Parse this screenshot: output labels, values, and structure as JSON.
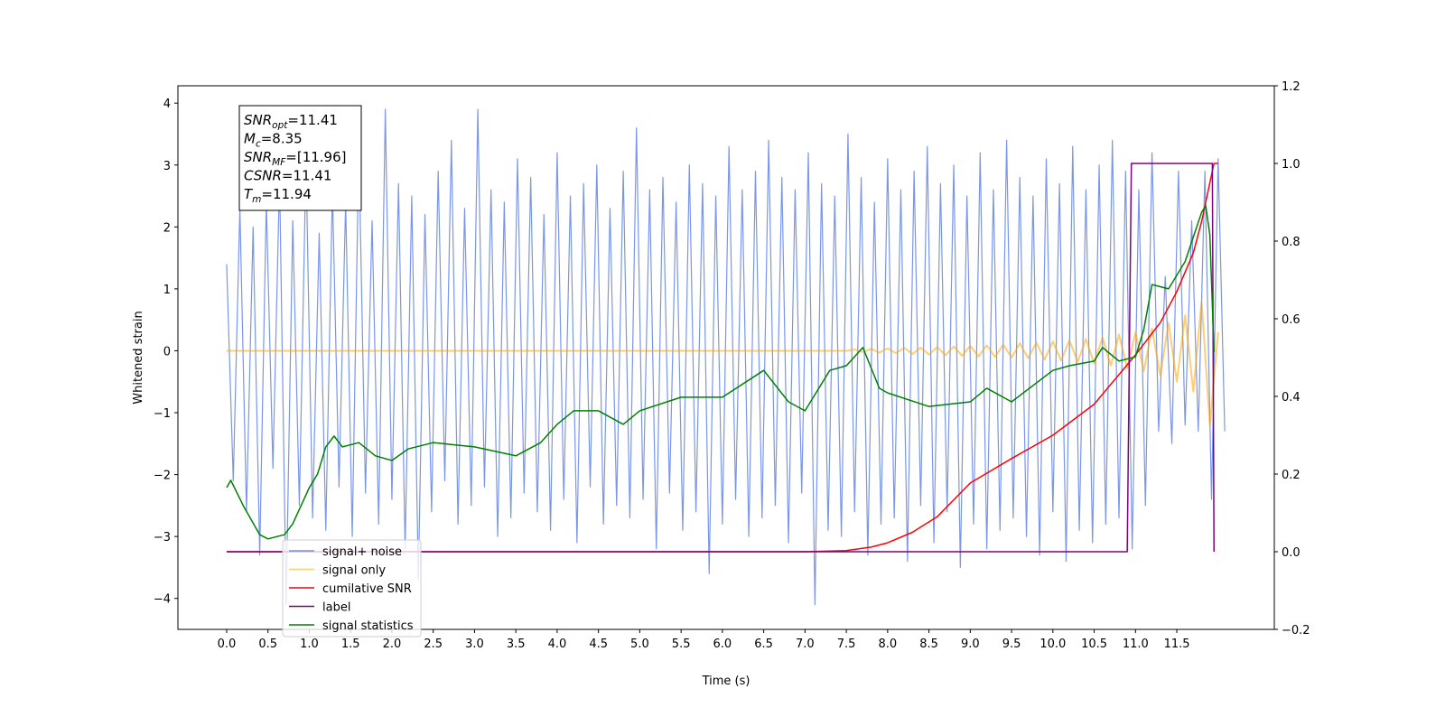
{
  "chart_data": {
    "type": "line",
    "xlabel": "Time (s)",
    "ylabel": "Whitened strain",
    "xlim": [
      -0.59,
      12.68
    ],
    "ylim": [
      -4.5,
      4.28
    ],
    "y2lim": [
      -0.2,
      1.2
    ],
    "xticks": [
      {
        "value": 0,
        "label": "0.0"
      },
      0.5,
      {
        "value": 1,
        "label": "1.0"
      },
      1.5,
      {
        "value": 2,
        "label": "2.0"
      },
      2.5,
      {
        "value": 3,
        "label": "3.0"
      },
      3.5,
      {
        "value": 4,
        "label": "4.0"
      },
      4.5,
      {
        "value": 5,
        "label": "5.0"
      },
      5.5,
      {
        "value": 6,
        "label": "6.0"
      },
      6.5,
      {
        "value": 7,
        "label": "7.0"
      },
      7.5,
      {
        "value": 8,
        "label": "8.0"
      },
      8.5,
      {
        "value": 9,
        "label": "9.0"
      },
      9.5,
      {
        "value": 10,
        "label": "10.0"
      },
      10.5,
      {
        "value": 11,
        "label": "11.0"
      },
      11.5
    ],
    "yticks": [
      {
        "value": -4,
        "label": "−4"
      },
      {
        "value": -3,
        "label": "−3"
      },
      {
        "value": -2,
        "label": "−2"
      },
      {
        "value": -1,
        "label": "−1"
      },
      0,
      1,
      2,
      3,
      4
    ],
    "y2ticks": [
      {
        "value": -0.2,
        "label": "−0.2"
      },
      {
        "value": 0,
        "label": "0.0"
      },
      0.2,
      0.4,
      0.6,
      0.8,
      {
        "value": 1,
        "label": "1.0"
      },
      1.2
    ],
    "annotation": [
      {
        "symbol": "SNR",
        "sub": "opt",
        "text": "=11.41"
      },
      {
        "symbol": "M",
        "sub": "c",
        "text": "=8.35"
      },
      {
        "symbol": "SNR",
        "sub": "MF",
        "text": "=[11.96]"
      },
      {
        "symbol": "CSNR",
        "sub": "",
        "text": "=11.41"
      },
      {
        "symbol": "T",
        "sub": "m",
        "text": "=11.94"
      }
    ],
    "series": [
      {
        "name": "signal+ noise",
        "color": "#4169e1",
        "x": [
          0,
          0.08,
          0.16,
          0.24,
          0.32,
          0.4,
          0.48,
          0.56,
          0.64,
          0.72,
          0.8,
          0.88,
          0.96,
          1.04,
          1.12,
          1.2,
          1.28,
          1.36,
          1.44,
          1.52,
          1.6,
          1.68,
          1.76,
          1.84,
          1.92,
          2,
          2.08,
          2.16,
          2.24,
          2.32,
          2.4,
          2.48,
          2.56,
          2.64,
          2.72,
          2.8,
          2.88,
          2.96,
          3.04,
          3.12,
          3.2,
          3.28,
          3.36,
          3.44,
          3.52,
          3.6,
          3.68,
          3.76,
          3.84,
          3.92,
          4,
          4.08,
          4.16,
          4.24,
          4.32,
          4.4,
          4.48,
          4.56,
          4.64,
          4.72,
          4.8,
          4.88,
          4.96,
          5.04,
          5.12,
          5.2,
          5.28,
          5.36,
          5.44,
          5.52,
          5.6,
          5.68,
          5.76,
          5.84,
          5.92,
          6,
          6.08,
          6.16,
          6.24,
          6.32,
          6.4,
          6.48,
          6.56,
          6.64,
          6.72,
          6.8,
          6.88,
          6.96,
          7.04,
          7.12,
          7.2,
          7.28,
          7.36,
          7.44,
          7.52,
          7.6,
          7.68,
          7.76,
          7.84,
          7.92,
          8,
          8.08,
          8.16,
          8.24,
          8.32,
          8.4,
          8.48,
          8.56,
          8.64,
          8.72,
          8.8,
          8.88,
          8.96,
          9.04,
          9.12,
          9.2,
          9.28,
          9.36,
          9.44,
          9.52,
          9.6,
          9.68,
          9.76,
          9.84,
          9.92,
          10,
          10.08,
          10.16,
          10.24,
          10.32,
          10.4,
          10.48,
          10.56,
          10.64,
          10.72,
          10.8,
          10.88,
          10.96,
          11.04,
          11.12,
          11.2,
          11.28,
          11.36,
          11.44,
          11.52,
          11.6,
          11.68,
          11.76,
          11.84,
          11.92,
          12,
          12.08
        ],
        "values": [
          1.4,
          -2.1,
          2.3,
          -2.6,
          2.0,
          -3.3,
          2.4,
          -1.9,
          2.8,
          -4.1,
          2.1,
          -2.5,
          3.1,
          -2.7,
          1.9,
          -2.9,
          2.6,
          -2.2,
          2.4,
          -3.0,
          3.3,
          -2.3,
          2.1,
          -2.8,
          3.9,
          -2.4,
          2.7,
          -3.2,
          2.5,
          -3.7,
          2.2,
          -2.6,
          2.9,
          -2.1,
          3.4,
          -2.8,
          2.3,
          -2.5,
          3.9,
          -2.2,
          2.6,
          -3.0,
          2.4,
          -2.7,
          3.1,
          -2.3,
          2.8,
          -2.6,
          2.2,
          -2.9,
          3.2,
          -2.4,
          2.5,
          -3.1,
          2.7,
          -2.2,
          3.0,
          -2.8,
          2.3,
          -2.5,
          2.9,
          -2.7,
          3.6,
          -2.4,
          2.6,
          -3.2,
          2.8,
          -2.3,
          2.4,
          -2.9,
          3.0,
          -2.6,
          2.7,
          -3.6,
          2.5,
          -2.8,
          3.3,
          -2.4,
          2.6,
          -3.0,
          2.9,
          -2.7,
          3.4,
          -2.5,
          2.8,
          -3.1,
          2.6,
          -2.3,
          3.2,
          -4.1,
          2.7,
          -2.9,
          2.5,
          -3.0,
          3.5,
          -2.6,
          2.8,
          -3.3,
          2.4,
          -2.8,
          3.1,
          -2.7,
          2.6,
          -3.4,
          2.9,
          -2.5,
          3.3,
          -3.1,
          2.7,
          -2.6,
          3.0,
          -3.5,
          2.5,
          -2.8,
          3.2,
          -3.2,
          2.6,
          -2.9,
          3.4,
          -2.7,
          2.8,
          -3.0,
          2.5,
          -3.3,
          3.1,
          -2.6,
          2.7,
          -3.4,
          3.3,
          -2.9,
          2.6,
          -3.1,
          3.0,
          -2.8,
          3.4,
          -2.7,
          2.9,
          -3.2,
          2.6,
          -2.5,
          3.2,
          -1.3,
          1.2,
          -1.5,
          2.9,
          -1.2,
          2.1,
          -1.3,
          2.9,
          -2.4,
          3.1,
          -1.3
        ]
      },
      {
        "name": "signal only",
        "color": "#ffa500",
        "x": [
          0,
          7.5,
          7.6,
          7.7,
          7.8,
          7.9,
          8.0,
          8.1,
          8.2,
          8.3,
          8.4,
          8.5,
          8.6,
          8.7,
          8.8,
          8.9,
          9.0,
          9.1,
          9.2,
          9.3,
          9.4,
          9.5,
          9.6,
          9.7,
          9.8,
          9.9,
          10.0,
          10.1,
          10.2,
          10.3,
          10.4,
          10.5,
          10.6,
          10.7,
          10.8,
          10.9,
          11.0,
          11.1,
          11.2,
          11.3,
          11.4,
          11.5,
          11.6,
          11.7,
          11.8,
          11.9,
          12.0
        ],
        "values": [
          0,
          0,
          0.02,
          -0.02,
          0.03,
          -0.03,
          0.04,
          -0.04,
          0.05,
          -0.05,
          0.05,
          -0.06,
          0.06,
          -0.07,
          0.07,
          -0.08,
          0.08,
          -0.09,
          0.09,
          -0.1,
          0.1,
          -0.11,
          0.12,
          -0.12,
          0.13,
          -0.14,
          0.15,
          -0.16,
          0.17,
          -0.18,
          0.19,
          -0.21,
          0.22,
          -0.24,
          0.26,
          -0.28,
          0.3,
          -0.33,
          0.36,
          -0.4,
          0.45,
          -0.5,
          0.57,
          -0.66,
          0.8,
          -1.2,
          0.3
        ]
      },
      {
        "name": "cumilative SNR",
        "color": "#ff0000",
        "axis": "y2",
        "x": [
          0,
          7.0,
          7.5,
          7.8,
          8.0,
          8.3,
          8.6,
          9.0,
          9.5,
          10.0,
          10.5,
          11.0,
          11.3,
          11.5,
          11.7,
          11.8,
          11.9,
          11.95,
          12.0
        ],
        "values": [
          0,
          0,
          0.003,
          0.012,
          0.023,
          0.05,
          0.09,
          0.177,
          0.24,
          0.3,
          0.38,
          0.507,
          0.59,
          0.67,
          0.77,
          0.85,
          0.95,
          1.0,
          1.0
        ]
      },
      {
        "name": "label",
        "color": "#800080",
        "axis": "y2",
        "x": [
          0,
          10.9,
          10.95,
          11.93,
          11.95
        ],
        "values": [
          0,
          0,
          1,
          1,
          0
        ]
      },
      {
        "name": "signal statistics",
        "color": "#008000",
        "axis": "y2",
        "x": [
          0,
          0.05,
          0.2,
          0.4,
          0.5,
          0.7,
          0.8,
          1.0,
          1.1,
          1.2,
          1.3,
          1.4,
          1.6,
          1.8,
          2.0,
          2.2,
          2.5,
          3.0,
          3.5,
          3.8,
          4.0,
          4.2,
          4.5,
          4.8,
          5.0,
          5.5,
          6.0,
          6.5,
          6.8,
          7.0,
          7.3,
          7.5,
          7.7,
          7.9,
          8.0,
          8.5,
          9.0,
          9.2,
          9.5,
          10.0,
          10.2,
          10.5,
          10.6,
          10.8,
          11.0,
          11.1,
          11.2,
          11.4,
          11.6,
          11.8,
          11.85,
          11.9,
          11.95
        ],
        "values": [
          0.165,
          0.184,
          0.119,
          0.044,
          0.033,
          0.044,
          0.072,
          0.165,
          0.2,
          0.27,
          0.298,
          0.27,
          0.281,
          0.247,
          0.235,
          0.265,
          0.281,
          0.27,
          0.247,
          0.281,
          0.328,
          0.363,
          0.363,
          0.328,
          0.363,
          0.398,
          0.398,
          0.467,
          0.386,
          0.363,
          0.467,
          0.479,
          0.526,
          0.421,
          0.409,
          0.374,
          0.386,
          0.421,
          0.386,
          0.467,
          0.479,
          0.491,
          0.526,
          0.491,
          0.502,
          0.572,
          0.688,
          0.677,
          0.747,
          0.874,
          0.891,
          0.816,
          0.514
        ]
      }
    ]
  }
}
